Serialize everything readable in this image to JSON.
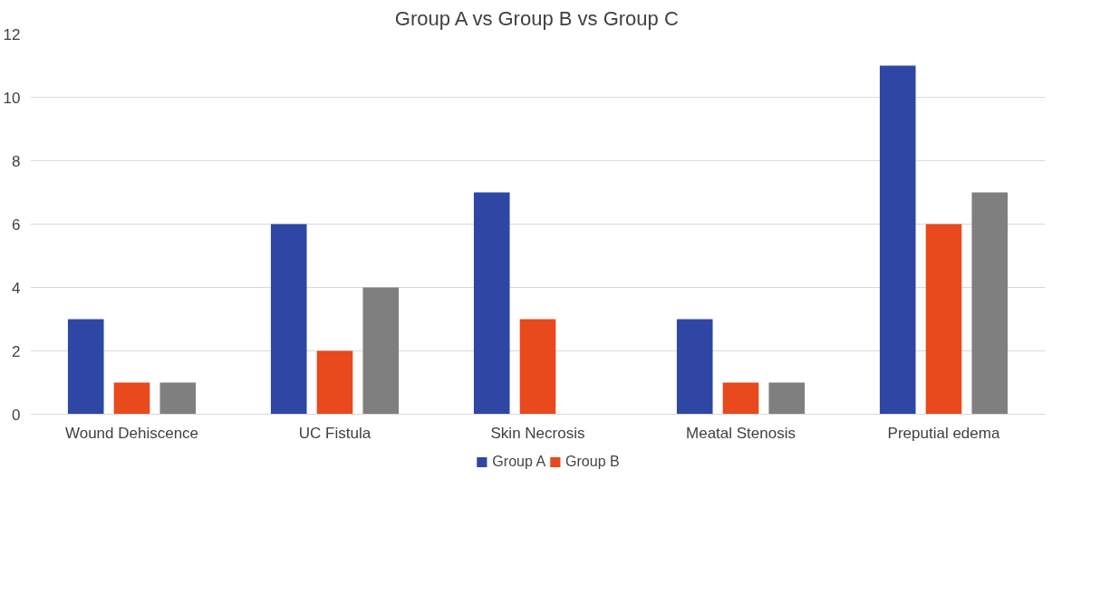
{
  "chart_data": {
    "type": "bar",
    "title": "Group A vs Group B vs Group C",
    "categories": [
      "Wound Dehiscence",
      "UC Fistula",
      "Skin Necrosis",
      "Meatal Stenosis",
      "Preputial edema"
    ],
    "series": [
      {
        "name": "Group A",
        "color": "#2e47a5",
        "values": [
          3,
          6,
          7,
          3,
          11
        ]
      },
      {
        "name": "Group B",
        "color": "#e8491d",
        "values": [
          1,
          2,
          3,
          1,
          6
        ]
      },
      {
        "color": "#7f7f7f",
        "values": [
          1,
          4,
          0,
          1,
          7
        ]
      }
    ],
    "ylim": [
      0,
      12
    ],
    "yticks": [
      0,
      2,
      4,
      6,
      8,
      10,
      12
    ],
    "grid": "y",
    "legend": "bottom"
  }
}
